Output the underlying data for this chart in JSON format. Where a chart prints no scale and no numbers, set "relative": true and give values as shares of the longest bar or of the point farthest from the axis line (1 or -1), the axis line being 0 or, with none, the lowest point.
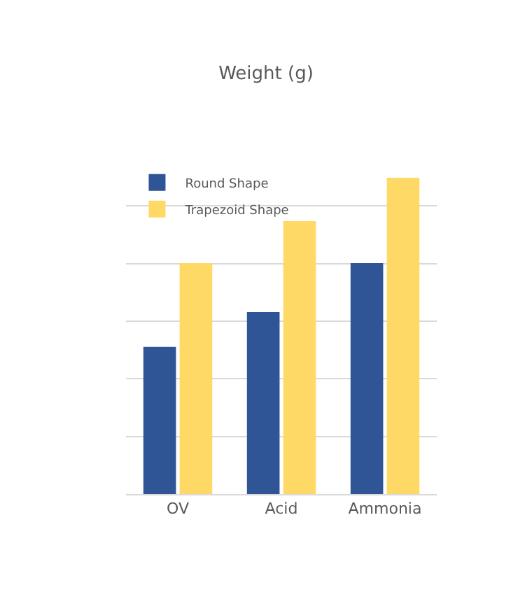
{
  "chart_data": {
    "type": "bar",
    "title": "Weight (g)",
    "categories": [
      "OV",
      "Acid",
      "Ammonia"
    ],
    "relative": true,
    "grid": "y",
    "legend": "top left",
    "series": [
      {
        "name": "Round Shape",
        "color": "#2f5597",
        "values": [
          0.465,
          0.575,
          0.73
        ]
      },
      {
        "name": "Trapezoid Shape",
        "color": "#ffd966",
        "values": [
          0.73,
          0.863,
          1
        ]
      }
    ]
  }
}
